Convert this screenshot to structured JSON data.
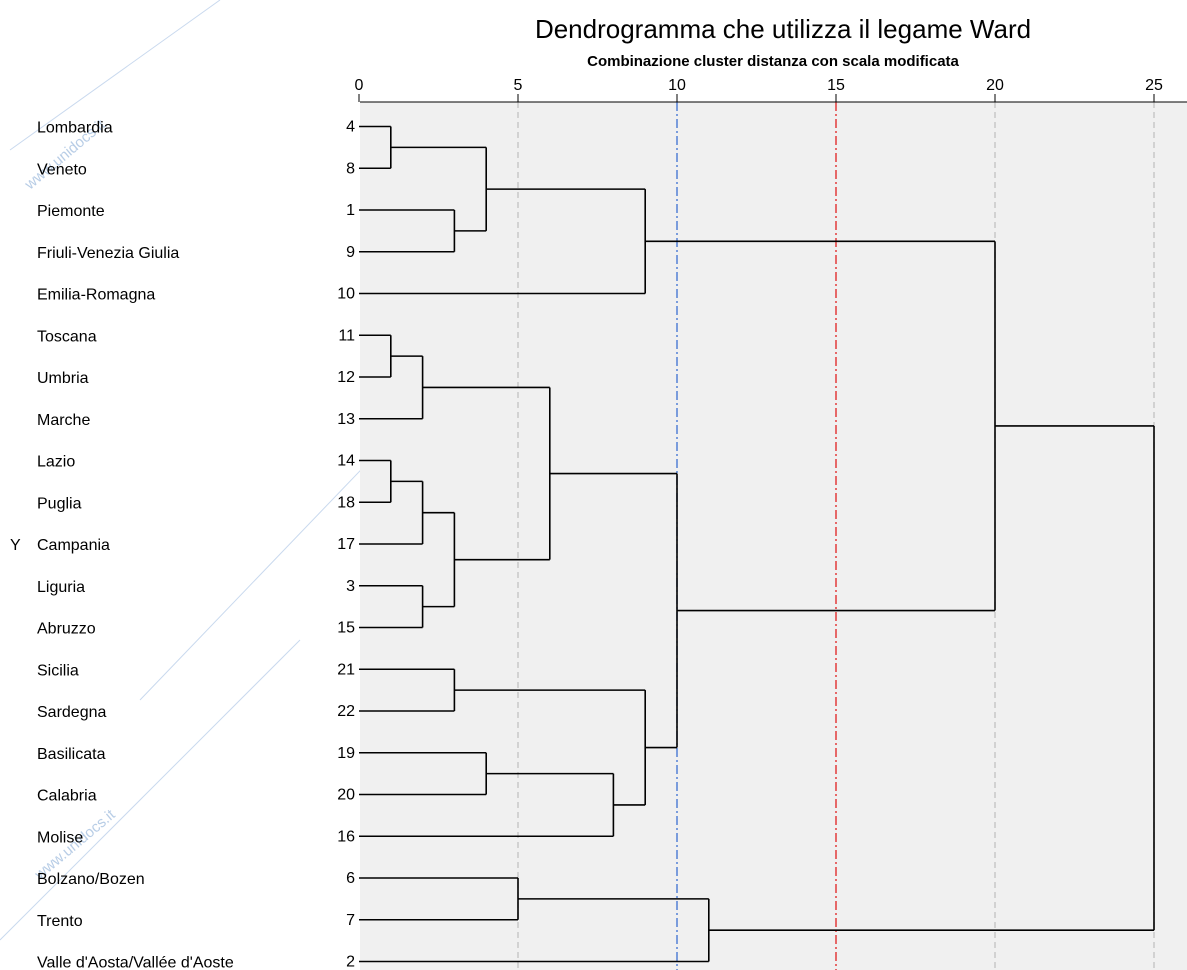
{
  "chart_data": {
    "type": "dendrogram",
    "title": "Dendrogramma che utilizza il legame Ward",
    "subtitle": "Combinazione cluster distanza con scala modificata",
    "y_axis_label": "Y",
    "xlim": [
      0,
      26
    ],
    "xticks": [
      0,
      5,
      10,
      15,
      20,
      25
    ],
    "reference_lines": [
      {
        "value": 10,
        "color": "#3b6fd1",
        "style": "dash-dot"
      },
      {
        "value": 15,
        "color": "#e02020",
        "style": "dash-dot"
      }
    ],
    "leaves": [
      {
        "name": "Lombardia",
        "id": "4"
      },
      {
        "name": "Veneto",
        "id": "8"
      },
      {
        "name": "Piemonte",
        "id": "1"
      },
      {
        "name": "Friuli-Venezia Giulia",
        "id": "9"
      },
      {
        "name": "Emilia-Romagna",
        "id": "10"
      },
      {
        "name": "Toscana",
        "id": "11"
      },
      {
        "name": "Umbria",
        "id": "12"
      },
      {
        "name": "Marche",
        "id": "13"
      },
      {
        "name": "Lazio",
        "id": "14"
      },
      {
        "name": "Puglia",
        "id": "18"
      },
      {
        "name": "Campania",
        "id": "17"
      },
      {
        "name": "Liguria",
        "id": "3"
      },
      {
        "name": "Abruzzo",
        "id": "15"
      },
      {
        "name": "Sicilia",
        "id": "21"
      },
      {
        "name": "Sardegna",
        "id": "22"
      },
      {
        "name": "Basilicata",
        "id": "19"
      },
      {
        "name": "Calabria",
        "id": "20"
      },
      {
        "name": "Molise",
        "id": "16"
      },
      {
        "name": "Bolzano/Bozen",
        "id": "6"
      },
      {
        "name": "Trento",
        "id": "7"
      },
      {
        "name": "Valle d'Aosta/Vallée d'Aoste",
        "id": "2"
      }
    ],
    "merges": [
      {
        "id": "A",
        "a": 0,
        "b": 1,
        "h": 1
      },
      {
        "id": "B",
        "a": 2,
        "b": 3,
        "h": 3
      },
      {
        "id": "C",
        "a": "A",
        "b": "B",
        "h": 4
      },
      {
        "id": "D",
        "a": "C",
        "b": 4,
        "h": 9
      },
      {
        "id": "E",
        "a": 5,
        "b": 6,
        "h": 1
      },
      {
        "id": "F",
        "a": "E",
        "b": 7,
        "h": 2
      },
      {
        "id": "G",
        "a": 8,
        "b": 9,
        "h": 1
      },
      {
        "id": "H",
        "a": "G",
        "b": 10,
        "h": 2
      },
      {
        "id": "I",
        "a": 11,
        "b": 12,
        "h": 2
      },
      {
        "id": "J",
        "a": "H",
        "b": "I",
        "h": 3
      },
      {
        "id": "K",
        "a": "F",
        "b": "J",
        "h": 6
      },
      {
        "id": "L",
        "a": 13,
        "b": 14,
        "h": 3
      },
      {
        "id": "M",
        "a": 15,
        "b": 16,
        "h": 4
      },
      {
        "id": "N",
        "a": "M",
        "b": 17,
        "h": 8
      },
      {
        "id": "O",
        "a": "L",
        "b": "N",
        "h": 9
      },
      {
        "id": "P",
        "a": "K",
        "b": "O",
        "h": 10
      },
      {
        "id": "Q",
        "a": "D",
        "b": "P",
        "h": 20
      },
      {
        "id": "R",
        "a": 18,
        "b": 19,
        "h": 5
      },
      {
        "id": "S",
        "a": "R",
        "b": 20,
        "h": 11
      },
      {
        "id": "T",
        "a": "Q",
        "b": "S",
        "h": 25
      }
    ]
  },
  "colors": {
    "plot_background": "#f0f0f0",
    "grid": "#c8c8c8",
    "tree": "#000000"
  },
  "watermark": "www.unidocs.it"
}
